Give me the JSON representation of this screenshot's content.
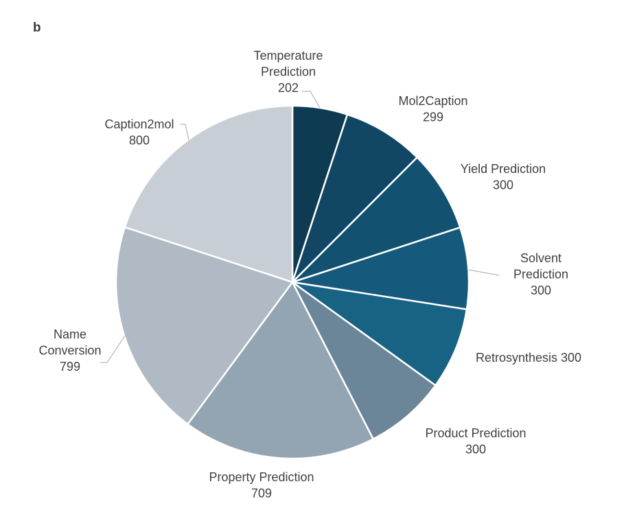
{
  "panel_label": "b",
  "chart_data": {
    "type": "pie",
    "title": "",
    "start_angle_deg": 0,
    "direction": "clockwise",
    "slice_border_color": "#ffffff",
    "leader_color": "#a6a6a6",
    "label_color": "#404040",
    "slices": [
      {
        "label_lines": [
          "Temperature",
          "Prediction",
          "202"
        ],
        "category": "Temperature Prediction",
        "value": 202,
        "color": "#0e3b52"
      },
      {
        "label_lines": [
          "Mol2Caption",
          "299"
        ],
        "category": "Mol2Caption",
        "value": 299,
        "color": "#114764"
      },
      {
        "label_lines": [
          "Yield Prediction",
          "300"
        ],
        "category": "Yield Prediction",
        "value": 300,
        "color": "#135171"
      },
      {
        "label_lines": [
          "Solvent",
          "Prediction",
          "300"
        ],
        "category": "Solvent Prediction",
        "value": 300,
        "color": "#155a7c"
      },
      {
        "label_lines": [
          "Retrosynthesis 300"
        ],
        "category": "Retrosynthesis",
        "value": 300,
        "color": "#186283"
      },
      {
        "label_lines": [
          "Product Prediction",
          "300"
        ],
        "category": "Product Prediction",
        "value": 300,
        "color": "#6b8699"
      },
      {
        "label_lines": [
          "Property Prediction",
          "709"
        ],
        "category": "Property Prediction",
        "value": 709,
        "color": "#93a5b2"
      },
      {
        "label_lines": [
          "Name",
          "Conversion",
          "799"
        ],
        "category": "Name Conversion",
        "value": 799,
        "color": "#afbac4"
      },
      {
        "label_lines": [
          "Caption2mol",
          "800"
        ],
        "category": "Caption2mol",
        "value": 800,
        "color": "#c8ced6"
      }
    ]
  }
}
